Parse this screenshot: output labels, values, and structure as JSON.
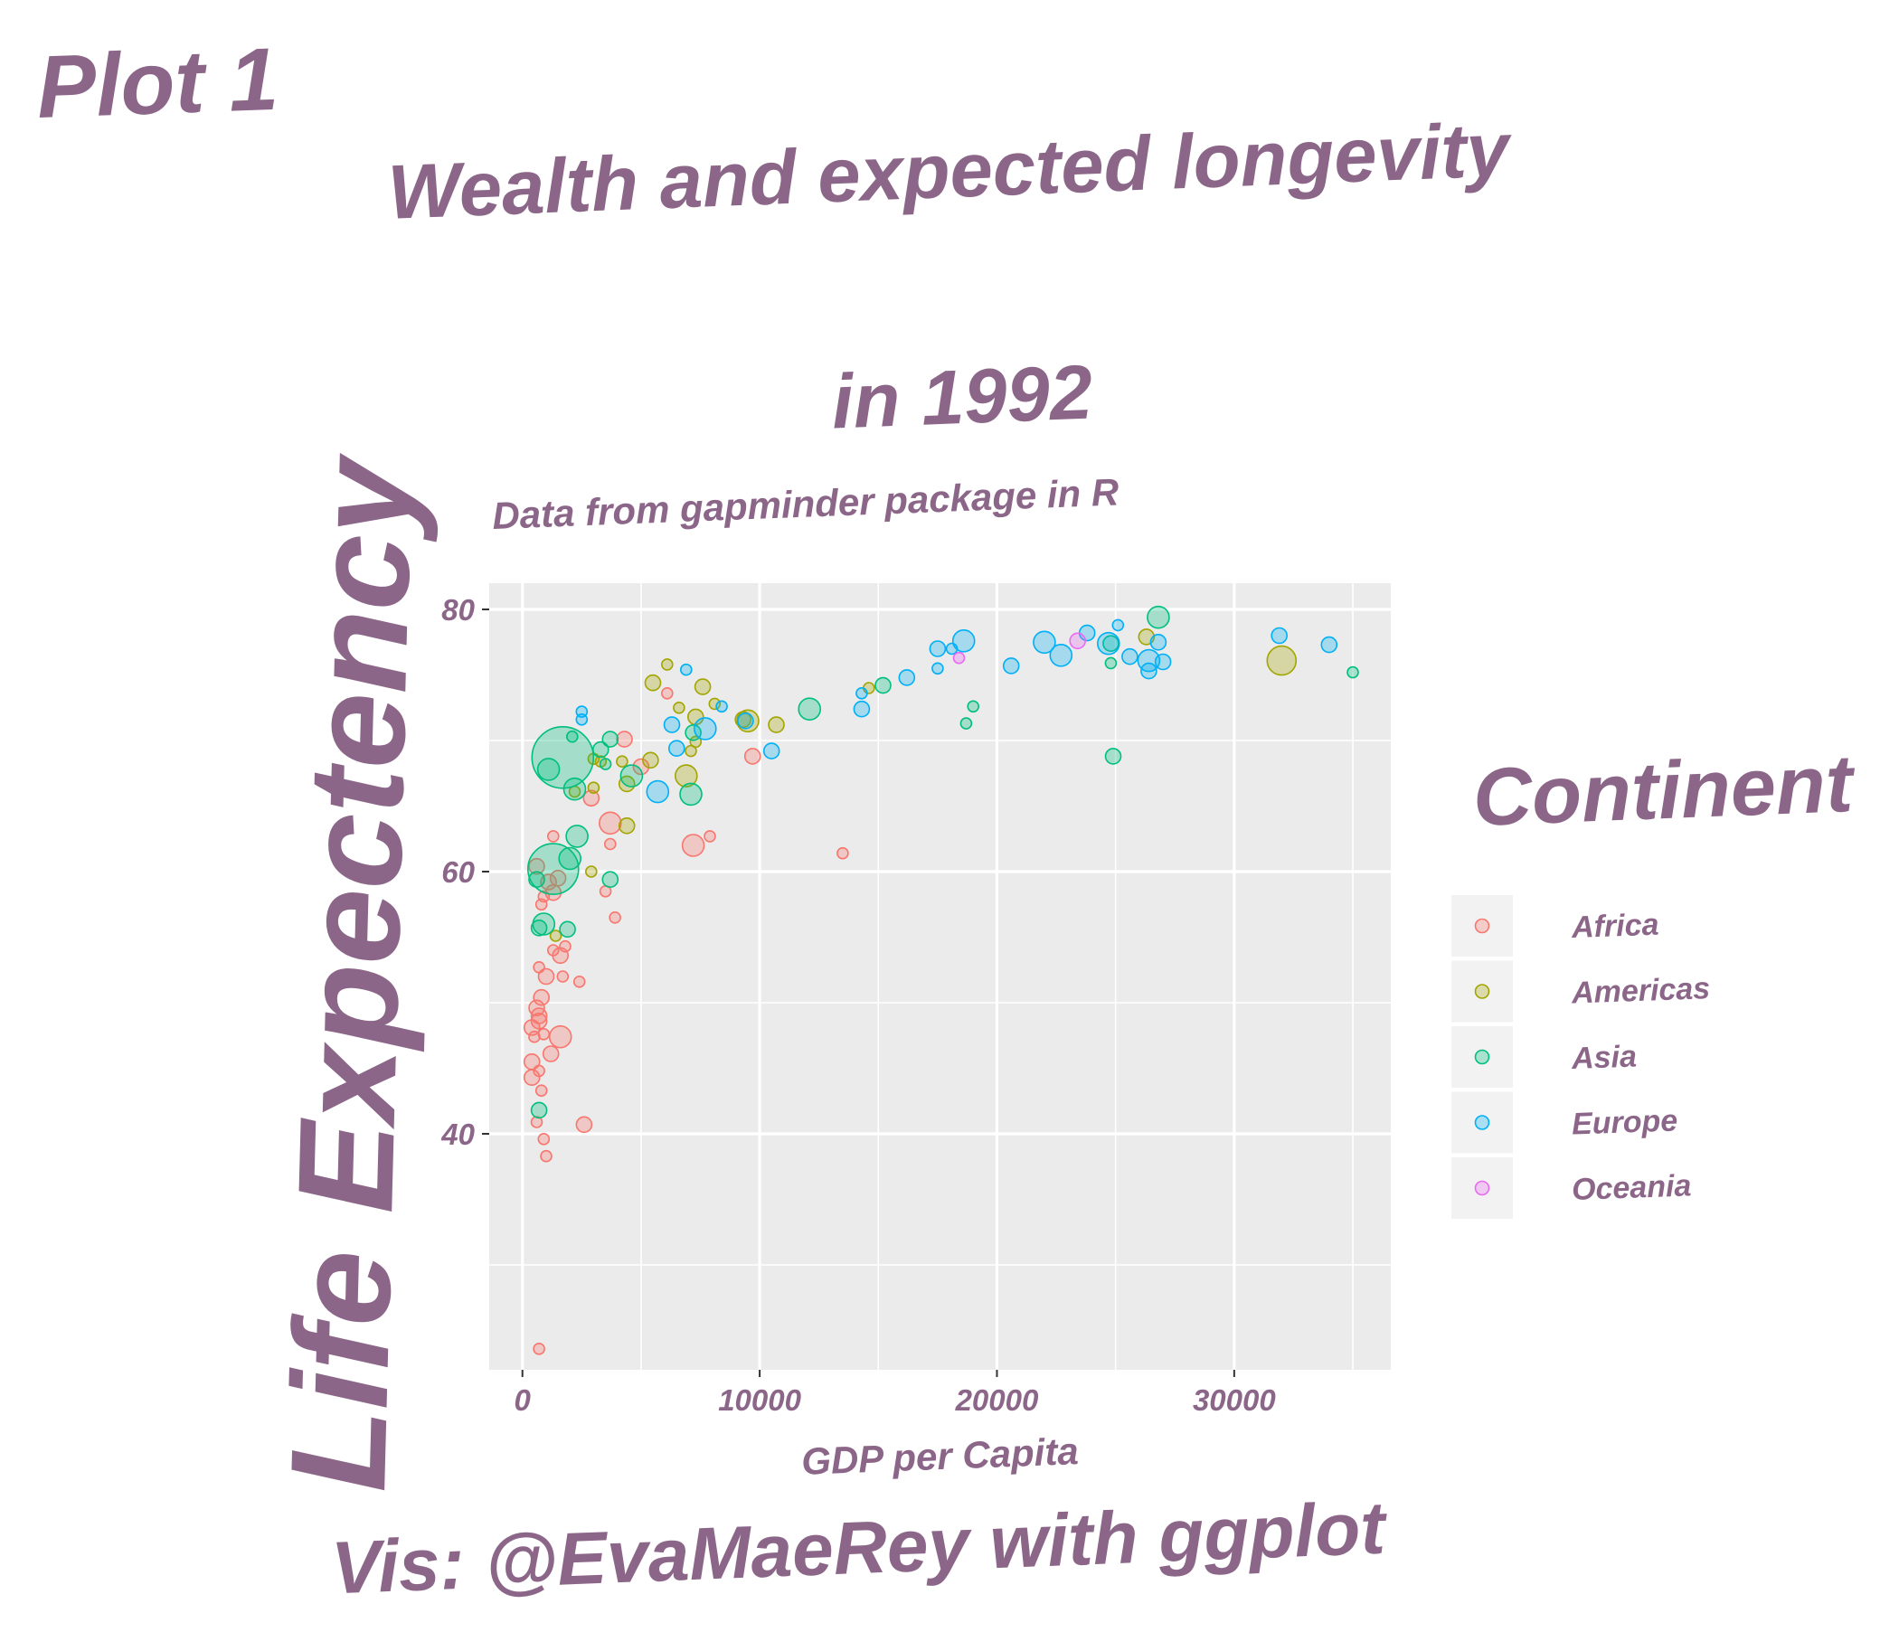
{
  "plot_tag": "Plot 1",
  "caption": "Vis: @EvaMaeRey with ggplot",
  "chart_data": {
    "type": "scatter",
    "title_lines": [
      "Wealth and expected longevity",
      "in 1992"
    ],
    "subtitle": "Data from gapminder package in R",
    "xlabel": "GDP per Capita",
    "ylabel": "Life Expectency",
    "xlim": [
      -1400,
      36600
    ],
    "ylim": [
      22,
      82
    ],
    "x_ticks": [
      0,
      10000,
      20000,
      30000
    ],
    "x_tick_labels": [
      "0",
      "10000",
      "20000",
      "30000"
    ],
    "y_ticks": [
      40,
      60,
      80
    ],
    "y_tick_labels": [
      "40",
      "60",
      "80"
    ],
    "grid": true,
    "panel_background": "#EBEBEB",
    "grid_color": "#FFFFFF",
    "legend": {
      "title": "Continent",
      "position": "right",
      "entries": [
        {
          "label": "Africa",
          "color": "#F8766D"
        },
        {
          "label": "Americas",
          "color": "#A3A500"
        },
        {
          "label": "Asia",
          "color": "#00BF7D"
        },
        {
          "label": "Europe",
          "color": "#00B0F6"
        },
        {
          "label": "Oceania",
          "color": "#E76BF3"
        }
      ]
    },
    "series": [
      {
        "name": "Africa",
        "color": "#F8766D",
        "points": [
          [
            700,
            23.6,
            1
          ],
          [
            600,
            60.4,
            2
          ],
          [
            900,
            58.1,
            1
          ],
          [
            1100,
            59.2,
            2
          ],
          [
            1300,
            58.4,
            2
          ],
          [
            1500,
            59.5,
            2
          ],
          [
            800,
            57.5,
            1
          ],
          [
            1600,
            53.6,
            2
          ],
          [
            1800,
            54.3,
            1
          ],
          [
            1300,
            54.0,
            1
          ],
          [
            700,
            52.7,
            1
          ],
          [
            1000,
            52.0,
            2
          ],
          [
            1700,
            52.0,
            1
          ],
          [
            2400,
            51.6,
            1
          ],
          [
            800,
            50.4,
            2
          ],
          [
            600,
            49.6,
            2
          ],
          [
            700,
            49.0,
            2
          ],
          [
            700,
            48.6,
            2
          ],
          [
            400,
            48.1,
            2
          ],
          [
            900,
            47.6,
            1
          ],
          [
            1600,
            47.4,
            3
          ],
          [
            500,
            47.4,
            1
          ],
          [
            1200,
            46.1,
            2
          ],
          [
            400,
            45.5,
            2
          ],
          [
            700,
            44.8,
            1
          ],
          [
            400,
            44.3,
            2
          ],
          [
            800,
            43.3,
            1
          ],
          [
            600,
            40.9,
            1
          ],
          [
            2600,
            40.7,
            2
          ],
          [
            900,
            39.6,
            1
          ],
          [
            1000,
            38.3,
            1
          ],
          [
            1300,
            62.7,
            1
          ],
          [
            2900,
            65.6,
            2
          ],
          [
            3700,
            63.7,
            3
          ],
          [
            3700,
            62.1,
            1
          ],
          [
            3500,
            58.5,
            1
          ],
          [
            3900,
            56.5,
            1
          ],
          [
            4300,
            70.1,
            2
          ],
          [
            6100,
            73.6,
            1
          ],
          [
            5000,
            68.0,
            2
          ],
          [
            7200,
            62.0,
            3
          ],
          [
            7900,
            62.7,
            1
          ],
          [
            9700,
            68.8,
            2
          ],
          [
            13500,
            61.4,
            1
          ]
        ]
      },
      {
        "name": "Americas",
        "color": "#A3A500",
        "points": [
          [
            1400,
            55.1,
            1
          ],
          [
            2200,
            66.1,
            1
          ],
          [
            2900,
            60.0,
            1
          ],
          [
            3000,
            66.4,
            1
          ],
          [
            3000,
            68.6,
            1
          ],
          [
            3300,
            68.4,
            1
          ],
          [
            4200,
            68.4,
            1
          ],
          [
            4400,
            66.7,
            2
          ],
          [
            4400,
            63.5,
            2
          ],
          [
            5400,
            68.5,
            2
          ],
          [
            5500,
            74.4,
            2
          ],
          [
            6100,
            75.8,
            1
          ],
          [
            6600,
            72.5,
            1
          ],
          [
            6900,
            67.3,
            3
          ],
          [
            7100,
            69.2,
            1
          ],
          [
            7300,
            71.8,
            2
          ],
          [
            7300,
            69.9,
            1
          ],
          [
            7600,
            74.1,
            2
          ],
          [
            8100,
            72.8,
            1
          ],
          [
            9300,
            71.6,
            2
          ],
          [
            9500,
            71.5,
            3
          ],
          [
            10700,
            71.2,
            2
          ],
          [
            14600,
            74.0,
            1
          ],
          [
            26300,
            77.9,
            2
          ],
          [
            32000,
            76.1,
            4
          ]
        ]
      },
      {
        "name": "Asia",
        "color": "#00BF7D",
        "points": [
          [
            1700,
            68.7,
            7
          ],
          [
            1300,
            60.2,
            6
          ],
          [
            900,
            56.0,
            3
          ],
          [
            600,
            59.4,
            2
          ],
          [
            1100,
            67.8,
            3
          ],
          [
            2300,
            62.7,
            3
          ],
          [
            2000,
            61.0,
            3
          ],
          [
            2200,
            66.3,
            3
          ],
          [
            2100,
            70.3,
            1
          ],
          [
            1900,
            55.6,
            2
          ],
          [
            700,
            55.7,
            2
          ],
          [
            700,
            41.8,
            2
          ],
          [
            3300,
            69.3,
            2
          ],
          [
            3500,
            68.2,
            1
          ],
          [
            3700,
            70.1,
            2
          ],
          [
            3700,
            59.4,
            2
          ],
          [
            4600,
            67.3,
            3
          ],
          [
            7100,
            65.9,
            3
          ],
          [
            7200,
            70.6,
            2
          ],
          [
            12100,
            72.4,
            3
          ],
          [
            15200,
            74.2,
            2
          ],
          [
            18700,
            71.3,
            1
          ],
          [
            19000,
            72.6,
            1
          ],
          [
            24800,
            75.9,
            1
          ],
          [
            24800,
            77.4,
            2
          ],
          [
            24900,
            68.8,
            2
          ],
          [
            26800,
            79.4,
            3
          ],
          [
            35000,
            75.2,
            1
          ]
        ]
      },
      {
        "name": "Europe",
        "color": "#00B0F6",
        "points": [
          [
            2500,
            72.2,
            1
          ],
          [
            2500,
            71.6,
            1
          ],
          [
            5700,
            66.1,
            3
          ],
          [
            6300,
            71.2,
            2
          ],
          [
            6500,
            69.4,
            2
          ],
          [
            6900,
            75.4,
            1
          ],
          [
            7700,
            70.9,
            3
          ],
          [
            8400,
            72.6,
            1
          ],
          [
            9400,
            71.5,
            2
          ],
          [
            10500,
            69.2,
            2
          ],
          [
            14300,
            73.6,
            1
          ],
          [
            14300,
            72.4,
            2
          ],
          [
            16200,
            74.8,
            2
          ],
          [
            17500,
            77.0,
            2
          ],
          [
            17500,
            75.5,
            1
          ],
          [
            18100,
            77.0,
            1
          ],
          [
            18600,
            77.6,
            3
          ],
          [
            20600,
            75.7,
            2
          ],
          [
            22000,
            77.5,
            3
          ],
          [
            22700,
            76.5,
            3
          ],
          [
            23800,
            78.2,
            2
          ],
          [
            24700,
            77.4,
            3
          ],
          [
            25100,
            78.8,
            1
          ],
          [
            25600,
            76.4,
            2
          ],
          [
            26400,
            76.1,
            3
          ],
          [
            26400,
            75.3,
            2
          ],
          [
            26800,
            77.5,
            2
          ],
          [
            27000,
            76.0,
            2
          ],
          [
            31900,
            78.0,
            2
          ],
          [
            34000,
            77.3,
            2
          ]
        ]
      },
      {
        "name": "Oceania",
        "color": "#E76BF3",
        "points": [
          [
            18400,
            76.3,
            1
          ],
          [
            23400,
            77.6,
            2
          ]
        ]
      }
    ]
  }
}
